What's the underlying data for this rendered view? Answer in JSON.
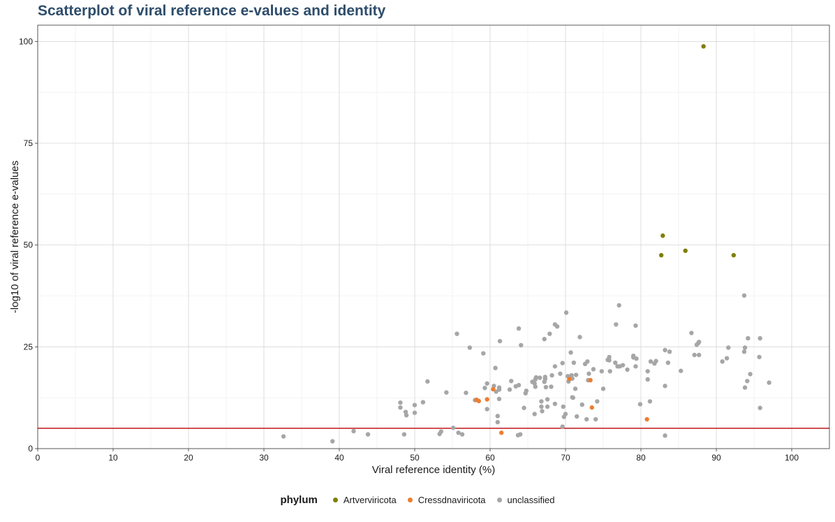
{
  "chart_data": {
    "type": "scatter",
    "title": "Scatterplot of viral reference e-values and identity",
    "xlabel": "Viral reference identity (%)",
    "ylabel": "-log10 of viral reference e-values",
    "xlim": [
      0,
      105
    ],
    "ylim": [
      0,
      104
    ],
    "xticks": [
      0,
      10,
      20,
      30,
      40,
      50,
      60,
      70,
      80,
      90,
      100
    ],
    "yticks": [
      0,
      25,
      50,
      75,
      100
    ],
    "grid": true,
    "threshold_line": {
      "y": 5,
      "color": "#c0141a"
    },
    "legend": {
      "title": "phylum",
      "position": "bottom"
    },
    "series": [
      {
        "name": "Artverviricota",
        "color": "#7f7f00",
        "points": [
          [
            88.3,
            98.8
          ],
          [
            82.9,
            52.3
          ],
          [
            85.9,
            48.6
          ],
          [
            82.7,
            47.5
          ],
          [
            92.3,
            47.5
          ]
        ]
      },
      {
        "name": "Cressdnaviricota",
        "color": "#ed7d31",
        "points": [
          [
            58.2,
            12.0
          ],
          [
            58.5,
            11.7
          ],
          [
            59.6,
            12.1
          ],
          [
            60.4,
            14.6
          ],
          [
            61.5,
            3.9
          ],
          [
            70.5,
            17.1
          ],
          [
            73.3,
            16.8
          ],
          [
            73.5,
            10.1
          ],
          [
            80.8,
            7.2
          ]
        ]
      },
      {
        "name": "unclassified",
        "color": "#a6a6a6",
        "points": [
          [
            32.6,
            3.0
          ],
          [
            39.1,
            1.8
          ],
          [
            41.9,
            4.3
          ],
          [
            43.8,
            3.5
          ],
          [
            48.1,
            11.3
          ],
          [
            48.1,
            10.1
          ],
          [
            48.6,
            3.5
          ],
          [
            48.8,
            9.0
          ],
          [
            48.9,
            8.2
          ],
          [
            50.0,
            10.7
          ],
          [
            50.0,
            8.8
          ],
          [
            51.1,
            11.4
          ],
          [
            51.7,
            16.5
          ],
          [
            53.3,
            3.6
          ],
          [
            53.5,
            4.2
          ],
          [
            54.2,
            13.8
          ],
          [
            55.1,
            5.1
          ],
          [
            55.6,
            28.2
          ],
          [
            55.8,
            3.9
          ],
          [
            56.3,
            3.5
          ],
          [
            56.8,
            13.7
          ],
          [
            57.3,
            24.8
          ],
          [
            58.0,
            11.9
          ],
          [
            59.1,
            23.4
          ],
          [
            59.3,
            14.9
          ],
          [
            59.6,
            9.7
          ],
          [
            59.6,
            16.0
          ],
          [
            60.5,
            15.4
          ],
          [
            60.7,
            19.8
          ],
          [
            60.8,
            14.0
          ],
          [
            61.0,
            8.0
          ],
          [
            61.0,
            6.5
          ],
          [
            61.2,
            12.2
          ],
          [
            61.3,
            26.4
          ],
          [
            61.2,
            14.5
          ],
          [
            61.2,
            15.0
          ],
          [
            62.6,
            14.5
          ],
          [
            62.8,
            16.6
          ],
          [
            63.4,
            15.3
          ],
          [
            63.7,
            3.3
          ],
          [
            63.8,
            15.6
          ],
          [
            63.8,
            29.5
          ],
          [
            64.0,
            3.5
          ],
          [
            64.1,
            25.4
          ],
          [
            64.5,
            10.0
          ],
          [
            64.7,
            13.6
          ],
          [
            64.8,
            14.2
          ],
          [
            65.6,
            16.4
          ],
          [
            65.9,
            8.5
          ],
          [
            65.9,
            16.0
          ],
          [
            66.0,
            15.2
          ],
          [
            66.1,
            17.5
          ],
          [
            66.0,
            17.0
          ],
          [
            66.6,
            17.4
          ],
          [
            66.9,
            9.2
          ],
          [
            66.8,
            11.6
          ],
          [
            66.8,
            10.3
          ],
          [
            67.2,
            26.9
          ],
          [
            67.3,
            17.6
          ],
          [
            67.3,
            17.1
          ],
          [
            67.2,
            16.4
          ],
          [
            67.4,
            15.1
          ],
          [
            67.6,
            10.3
          ],
          [
            67.6,
            12.1
          ],
          [
            67.9,
            28.2
          ],
          [
            68.1,
            15.2
          ],
          [
            68.2,
            18.0
          ],
          [
            68.6,
            11.0
          ],
          [
            68.6,
            20.2
          ],
          [
            68.6,
            30.5
          ],
          [
            68.9,
            30.0
          ],
          [
            69.3,
            18.4
          ],
          [
            69.6,
            21.0
          ],
          [
            69.6,
            5.4
          ],
          [
            69.7,
            10.3
          ],
          [
            69.8,
            7.8
          ],
          [
            70.0,
            8.5
          ],
          [
            70.1,
            33.4
          ],
          [
            70.3,
            17.8
          ],
          [
            70.4,
            16.5
          ],
          [
            70.7,
            23.6
          ],
          [
            70.8,
            18.0
          ],
          [
            70.9,
            17.2
          ],
          [
            70.9,
            12.6
          ],
          [
            71.0,
            12.5
          ],
          [
            71.1,
            21.1
          ],
          [
            71.3,
            14.7
          ],
          [
            71.5,
            7.9
          ],
          [
            71.4,
            18.1
          ],
          [
            71.9,
            27.4
          ],
          [
            72.2,
            10.8
          ],
          [
            72.6,
            20.8
          ],
          [
            72.9,
            21.4
          ],
          [
            72.8,
            7.2
          ],
          [
            73.0,
            16.8
          ],
          [
            73.1,
            18.4
          ],
          [
            73.7,
            19.5
          ],
          [
            74.0,
            7.2
          ],
          [
            74.2,
            11.6
          ],
          [
            74.8,
            19.0
          ],
          [
            75.0,
            14.7
          ],
          [
            75.6,
            21.8
          ],
          [
            75.8,
            22.5
          ],
          [
            75.8,
            21.7
          ],
          [
            75.9,
            19.0
          ],
          [
            76.6,
            21.1
          ],
          [
            76.7,
            30.5
          ],
          [
            76.9,
            20.2
          ],
          [
            77.1,
            35.2
          ],
          [
            77.2,
            20.2
          ],
          [
            77.6,
            20.5
          ],
          [
            78.2,
            19.4
          ],
          [
            79.0,
            22.4
          ],
          [
            79.0,
            22.8
          ],
          [
            79.3,
            30.2
          ],
          [
            79.3,
            20.2
          ],
          [
            79.4,
            22.1
          ],
          [
            79.9,
            10.9
          ],
          [
            80.9,
            19.0
          ],
          [
            80.9,
            17.0
          ],
          [
            81.2,
            11.6
          ],
          [
            81.3,
            21.4
          ],
          [
            81.8,
            20.9
          ],
          [
            82.0,
            21.5
          ],
          [
            83.2,
            24.2
          ],
          [
            83.2,
            15.4
          ],
          [
            83.2,
            3.2
          ],
          [
            83.6,
            21.1
          ],
          [
            83.8,
            23.8
          ],
          [
            85.3,
            19.1
          ],
          [
            86.7,
            28.4
          ],
          [
            87.1,
            23.0
          ],
          [
            87.4,
            25.5
          ],
          [
            87.6,
            25.9
          ],
          [
            87.7,
            26.2
          ],
          [
            87.7,
            23.0
          ],
          [
            90.8,
            21.4
          ],
          [
            91.4,
            22.2
          ],
          [
            91.6,
            24.8
          ],
          [
            93.7,
            37.6
          ],
          [
            93.7,
            23.8
          ],
          [
            93.8,
            24.8
          ],
          [
            93.8,
            15.0
          ],
          [
            94.1,
            16.6
          ],
          [
            94.2,
            27.1
          ],
          [
            94.5,
            18.3
          ],
          [
            95.7,
            22.5
          ],
          [
            95.8,
            27.1
          ],
          [
            95.8,
            10.0
          ],
          [
            97.0,
            16.2
          ]
        ]
      }
    ]
  }
}
